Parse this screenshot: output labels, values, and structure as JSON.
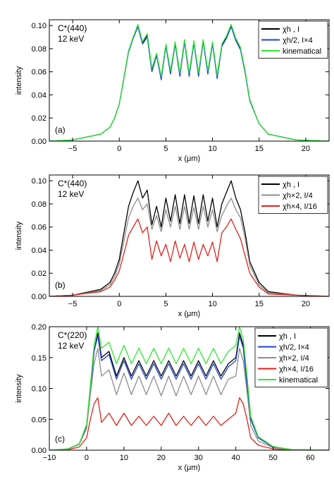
{
  "figure": {
    "panels": [
      {
        "panel_label": "(a)",
        "annotation": [
          "C*(440)",
          "12 keV"
        ],
        "xlabel": "x (μm)",
        "ylabel": "intensity",
        "xlim": [
          -7.5,
          22.5
        ],
        "ylim": [
          0,
          0.105
        ],
        "xticks": [
          -5,
          0,
          5,
          10,
          15,
          20
        ],
        "yticks": [
          0,
          0.02,
          0.04,
          0.06,
          0.08,
          0.1
        ],
        "ytick_labels": [
          "0.00",
          "0.02",
          "0.04",
          "0.06",
          "0.08",
          "0.10"
        ],
        "legend": [
          {
            "label": "χh , I",
            "color": "#000000"
          },
          {
            "label": "χh/2, I×4",
            "color": "#1f3fd6"
          },
          {
            "label": "kinematical",
            "color": "#2ee82e"
          }
        ]
      },
      {
        "panel_label": "(b)",
        "annotation": [
          "C*(440)",
          "12 keV"
        ],
        "xlabel": "x (μm)",
        "ylabel": "intensity",
        "xlim": [
          -7.5,
          22.5
        ],
        "ylim": [
          0,
          0.105
        ],
        "xticks": [
          -5,
          0,
          5,
          10,
          15,
          20
        ],
        "yticks": [
          0,
          0.02,
          0.04,
          0.06,
          0.08,
          0.1
        ],
        "ytick_labels": [
          "0.00",
          "0.02",
          "0.04",
          "0.06",
          "0.08",
          "0.10"
        ],
        "legend": [
          {
            "label": "χh , I",
            "color": "#000000"
          },
          {
            "label": "χh×2, I/4",
            "color": "#8c8c8c"
          },
          {
            "label": "χh×4, I/16",
            "color": "#e0221b"
          }
        ]
      },
      {
        "panel_label": "(c)",
        "annotation": [
          "C*(220)",
          "12 keV"
        ],
        "xlabel": "x (μm)",
        "ylabel": "intensity",
        "xlim": [
          -10,
          65
        ],
        "ylim": [
          0,
          0.2
        ],
        "xticks": [
          -10,
          0,
          10,
          20,
          30,
          40,
          50,
          60
        ],
        "yticks": [
          0,
          0.05,
          0.1,
          0.15,
          0.2
        ],
        "ytick_labels": [
          "0.00",
          "0.05",
          "0.10",
          "0.15",
          "0.20"
        ],
        "legend": [
          {
            "label": "χh , I",
            "color": "#000000"
          },
          {
            "label": "χh/2, I×4",
            "color": "#1f3fd6"
          },
          {
            "label": "χh×2, I/4",
            "color": "#8c8c8c"
          },
          {
            "label": "χh×4, I/16",
            "color": "#e0221b"
          },
          {
            "label": "kinematical",
            "color": "#2ee82e"
          }
        ]
      }
    ]
  },
  "chart_data": [
    {
      "type": "line",
      "xlabel": "x (μm)",
      "ylabel": "intensity",
      "xlim": [
        -7.5,
        22.5
      ],
      "ylim": [
        0,
        0.105
      ],
      "x": [
        -7.5,
        -5,
        -2,
        -1,
        -0.5,
        0,
        0.5,
        1,
        1.5,
        2,
        2.5,
        3,
        3.5,
        4,
        4.5,
        5,
        5.5,
        6,
        6.5,
        7,
        7.5,
        8,
        8.5,
        9,
        9.5,
        10,
        10.5,
        11,
        11.5,
        12,
        12.5,
        13,
        13.5,
        14,
        15,
        16,
        19,
        22.5
      ],
      "series": [
        {
          "name": "χh , I",
          "color": "#000000",
          "values": [
            0,
            0.001,
            0.006,
            0.012,
            0.02,
            0.032,
            0.055,
            0.078,
            0.09,
            0.1,
            0.085,
            0.092,
            0.062,
            0.075,
            0.055,
            0.083,
            0.06,
            0.085,
            0.058,
            0.087,
            0.058,
            0.086,
            0.058,
            0.087,
            0.06,
            0.085,
            0.056,
            0.083,
            0.09,
            0.1,
            0.088,
            0.08,
            0.06,
            0.035,
            0.015,
            0.006,
            0.001,
            0
          ]
        },
        {
          "name": "χh/2, I×4",
          "color": "#1f3fd6",
          "values": [
            0,
            0.001,
            0.006,
            0.012,
            0.02,
            0.032,
            0.054,
            0.077,
            0.089,
            0.099,
            0.084,
            0.09,
            0.06,
            0.074,
            0.053,
            0.082,
            0.058,
            0.084,
            0.056,
            0.086,
            0.056,
            0.085,
            0.056,
            0.086,
            0.058,
            0.084,
            0.054,
            0.082,
            0.089,
            0.099,
            0.087,
            0.079,
            0.059,
            0.035,
            0.015,
            0.006,
            0.001,
            0
          ]
        },
        {
          "name": "kinematical",
          "color": "#2ee82e",
          "values": [
            0,
            0.001,
            0.006,
            0.012,
            0.02,
            0.032,
            0.055,
            0.078,
            0.09,
            0.101,
            0.086,
            0.093,
            0.063,
            0.076,
            0.056,
            0.084,
            0.061,
            0.086,
            0.059,
            0.088,
            0.059,
            0.087,
            0.059,
            0.088,
            0.061,
            0.086,
            0.057,
            0.084,
            0.091,
            0.101,
            0.089,
            0.081,
            0.061,
            0.036,
            0.015,
            0.006,
            0.001,
            0
          ]
        }
      ]
    },
    {
      "type": "line",
      "xlabel": "x (μm)",
      "ylabel": "intensity",
      "xlim": [
        -7.5,
        22.5
      ],
      "ylim": [
        0,
        0.105
      ],
      "x": [
        -7.5,
        -5,
        -2,
        -1,
        -0.5,
        0,
        0.5,
        1,
        1.5,
        2,
        2.5,
        3,
        3.5,
        4,
        4.5,
        5,
        5.5,
        6,
        6.5,
        7,
        7.5,
        8,
        8.5,
        9,
        9.5,
        10,
        10.5,
        11,
        11.5,
        12,
        12.5,
        13,
        13.5,
        14,
        15,
        16,
        19,
        22.5
      ],
      "series": [
        {
          "name": "χh , I",
          "color": "#000000",
          "values": [
            0,
            0.001,
            0.006,
            0.012,
            0.02,
            0.032,
            0.055,
            0.078,
            0.09,
            0.1,
            0.085,
            0.092,
            0.062,
            0.078,
            0.06,
            0.085,
            0.065,
            0.088,
            0.063,
            0.088,
            0.063,
            0.087,
            0.063,
            0.088,
            0.065,
            0.085,
            0.06,
            0.08,
            0.09,
            0.1,
            0.085,
            0.075,
            0.055,
            0.03,
            0.012,
            0.004,
            0.001,
            0
          ]
        },
        {
          "name": "χh×2, I/4",
          "color": "#8c8c8c",
          "values": [
            0,
            0.001,
            0.005,
            0.01,
            0.017,
            0.028,
            0.048,
            0.068,
            0.078,
            0.085,
            0.075,
            0.08,
            0.058,
            0.07,
            0.056,
            0.075,
            0.06,
            0.078,
            0.058,
            0.078,
            0.058,
            0.077,
            0.058,
            0.078,
            0.06,
            0.075,
            0.056,
            0.07,
            0.078,
            0.085,
            0.075,
            0.068,
            0.05,
            0.027,
            0.01,
            0.003,
            0.001,
            0
          ]
        },
        {
          "name": "χh×4, I/16",
          "color": "#e0221b",
          "values": [
            0,
            0.001,
            0.004,
            0.008,
            0.014,
            0.022,
            0.037,
            0.053,
            0.06,
            0.067,
            0.055,
            0.06,
            0.032,
            0.048,
            0.035,
            0.045,
            0.03,
            0.048,
            0.033,
            0.045,
            0.03,
            0.047,
            0.032,
            0.045,
            0.035,
            0.047,
            0.03,
            0.055,
            0.06,
            0.067,
            0.058,
            0.05,
            0.035,
            0.02,
            0.008,
            0.002,
            0.001,
            0
          ]
        }
      ]
    },
    {
      "type": "line",
      "xlabel": "x (μm)",
      "ylabel": "intensity",
      "xlim": [
        -10,
        65
      ],
      "ylim": [
        0,
        0.2
      ],
      "x": [
        -10,
        -5,
        -2,
        0,
        1,
        2,
        3,
        4,
        6,
        8,
        10,
        12,
        14,
        16,
        18,
        20,
        22,
        24,
        26,
        28,
        30,
        32,
        34,
        36,
        38,
        40,
        41,
        42,
        43,
        44,
        46,
        50,
        55,
        65
      ],
      "series": [
        {
          "name": "χh , I",
          "color": "#000000",
          "values": [
            0,
            0.002,
            0.01,
            0.04,
            0.1,
            0.16,
            0.19,
            0.15,
            0.16,
            0.12,
            0.15,
            0.12,
            0.145,
            0.12,
            0.145,
            0.12,
            0.145,
            0.12,
            0.145,
            0.12,
            0.145,
            0.12,
            0.145,
            0.12,
            0.14,
            0.15,
            0.19,
            0.17,
            0.11,
            0.05,
            0.02,
            0.005,
            0.001,
            0
          ]
        },
        {
          "name": "χh/2, I×4",
          "color": "#1f3fd6",
          "values": [
            0,
            0.002,
            0.01,
            0.04,
            0.1,
            0.16,
            0.185,
            0.145,
            0.155,
            0.115,
            0.145,
            0.115,
            0.14,
            0.115,
            0.14,
            0.115,
            0.14,
            0.115,
            0.14,
            0.115,
            0.14,
            0.115,
            0.14,
            0.115,
            0.135,
            0.145,
            0.185,
            0.165,
            0.105,
            0.05,
            0.02,
            0.005,
            0.001,
            0
          ]
        },
        {
          "name": "χh×2, I/4",
          "color": "#8c8c8c",
          "values": [
            0,
            0.002,
            0.009,
            0.035,
            0.09,
            0.14,
            0.165,
            0.12,
            0.13,
            0.09,
            0.125,
            0.09,
            0.12,
            0.09,
            0.12,
            0.088,
            0.12,
            0.088,
            0.12,
            0.09,
            0.12,
            0.09,
            0.12,
            0.09,
            0.115,
            0.12,
            0.165,
            0.145,
            0.095,
            0.04,
            0.015,
            0.004,
            0.001,
            0
          ]
        },
        {
          "name": "χh×4, I/16",
          "color": "#e0221b",
          "values": [
            0,
            0.001,
            0.005,
            0.02,
            0.05,
            0.075,
            0.085,
            0.045,
            0.06,
            0.04,
            0.06,
            0.04,
            0.055,
            0.04,
            0.055,
            0.04,
            0.06,
            0.04,
            0.055,
            0.04,
            0.055,
            0.04,
            0.055,
            0.04,
            0.05,
            0.06,
            0.085,
            0.075,
            0.05,
            0.02,
            0.008,
            0.002,
            0,
            0
          ]
        },
        {
          "name": "kinematical",
          "color": "#2ee82e",
          "values": [
            0,
            0.002,
            0.01,
            0.042,
            0.105,
            0.17,
            0.2,
            0.165,
            0.175,
            0.14,
            0.17,
            0.14,
            0.165,
            0.14,
            0.165,
            0.14,
            0.165,
            0.14,
            0.165,
            0.14,
            0.165,
            0.14,
            0.165,
            0.14,
            0.16,
            0.17,
            0.2,
            0.18,
            0.12,
            0.055,
            0.022,
            0.006,
            0.001,
            0
          ]
        }
      ]
    }
  ]
}
